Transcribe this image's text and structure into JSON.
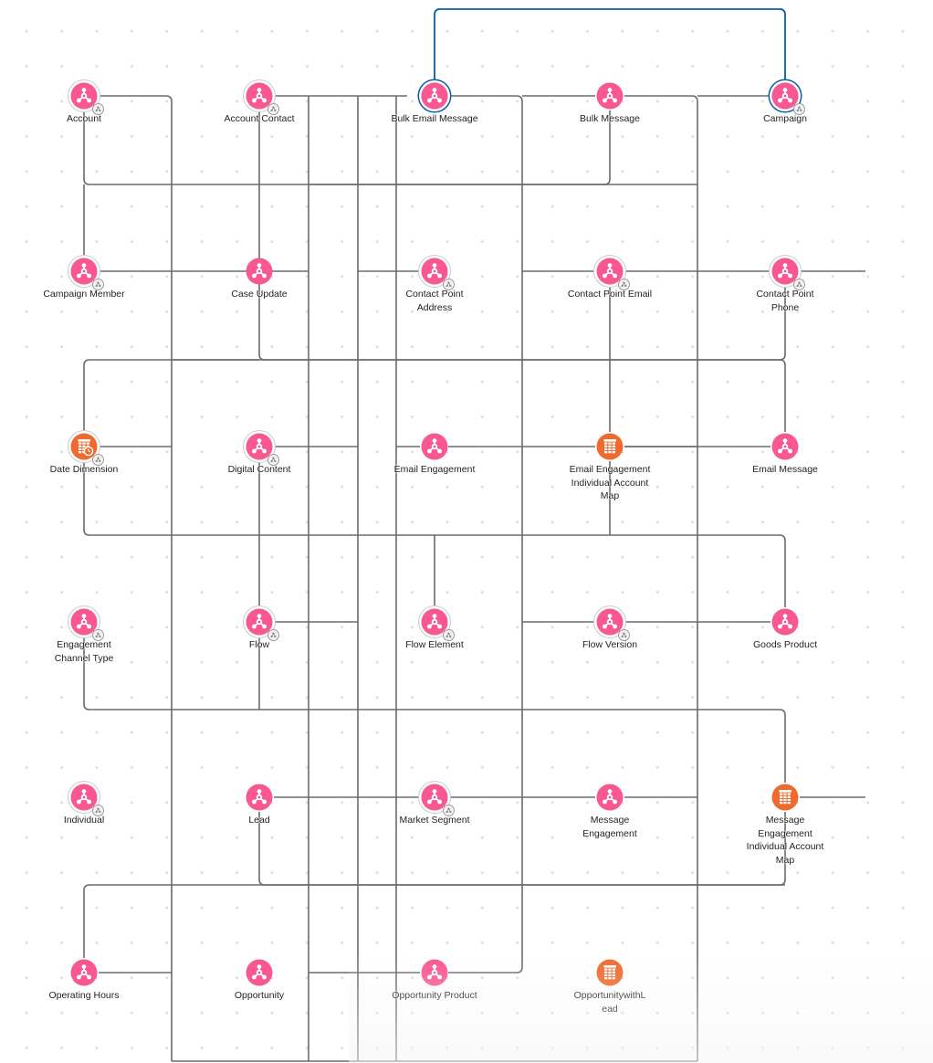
{
  "colors": {
    "object_node": "#f85891",
    "table_node": "#ef6a2f",
    "edge": "#6b6b6b",
    "highlight_edge": "#0b5cab",
    "label": "#232323"
  },
  "nodes": [
    {
      "id": "account",
      "label": "Account",
      "icon": "object-icon",
      "badge": true
    },
    {
      "id": "account-contact",
      "label": "Account Contact",
      "icon": "object-icon",
      "badge": true
    },
    {
      "id": "bulk-email-message",
      "label": "Bulk Email Message",
      "icon": "object-icon",
      "selected": true
    },
    {
      "id": "bulk-message",
      "label": "Bulk Message",
      "icon": "object-icon"
    },
    {
      "id": "campaign",
      "label": "Campaign",
      "icon": "object-icon",
      "badge": true,
      "selected": true
    },
    {
      "id": "campaign-member",
      "label": "Campaign Member",
      "icon": "object-icon",
      "badge": true
    },
    {
      "id": "case-update",
      "label": "Case Update",
      "icon": "object-icon"
    },
    {
      "id": "contact-point-address",
      "label": "Contact Point Address",
      "icon": "object-icon",
      "badge": true
    },
    {
      "id": "contact-point-email",
      "label": "Contact Point Email",
      "icon": "object-icon",
      "badge": true
    },
    {
      "id": "contact-point-phone",
      "label": "Contact Point Phone",
      "icon": "object-icon",
      "badge": true
    },
    {
      "id": "date-dimension",
      "label": "Date Dimension",
      "icon": "calendar-table-icon",
      "badge": true
    },
    {
      "id": "digital-content",
      "label": "Digital Content",
      "icon": "object-icon",
      "badge": true
    },
    {
      "id": "email-engagement",
      "label": "Email Engagement",
      "icon": "object-icon"
    },
    {
      "id": "email-engagement-individual-account-map",
      "label": "Email Engagement Individual Account Map",
      "icon": "table-icon"
    },
    {
      "id": "email-message",
      "label": "Email Message",
      "icon": "object-icon"
    },
    {
      "id": "engagement-channel-type",
      "label": "Engagement Channel Type",
      "icon": "object-icon",
      "badge": true
    },
    {
      "id": "flow",
      "label": "Flow",
      "icon": "object-icon",
      "badge": true
    },
    {
      "id": "flow-element",
      "label": "Flow Element",
      "icon": "object-icon",
      "badge": true
    },
    {
      "id": "flow-version",
      "label": "Flow Version",
      "icon": "object-icon",
      "badge": true
    },
    {
      "id": "goods-product",
      "label": "Goods Product",
      "icon": "object-icon"
    },
    {
      "id": "individual",
      "label": "Individual",
      "icon": "object-icon",
      "badge": true
    },
    {
      "id": "lead",
      "label": "Lead",
      "icon": "object-icon"
    },
    {
      "id": "market-segment",
      "label": "Market Segment",
      "icon": "object-icon",
      "badge": true
    },
    {
      "id": "message-engagement",
      "label": "Message Engagement",
      "icon": "object-icon"
    },
    {
      "id": "message-engagement-individual-account-map",
      "label": "Message Engagement Individual Account Map",
      "icon": "table-icon"
    },
    {
      "id": "operating-hours",
      "label": "Operating Hours",
      "icon": "object-icon"
    },
    {
      "id": "opportunity",
      "label": "Opportunity",
      "icon": "object-icon"
    },
    {
      "id": "opportunity-product",
      "label": "Opportunity Product",
      "icon": "object-icon"
    },
    {
      "id": "opportunitywithlead",
      "label": "OpportunitywithL ead",
      "icon": "table-icon"
    }
  ]
}
